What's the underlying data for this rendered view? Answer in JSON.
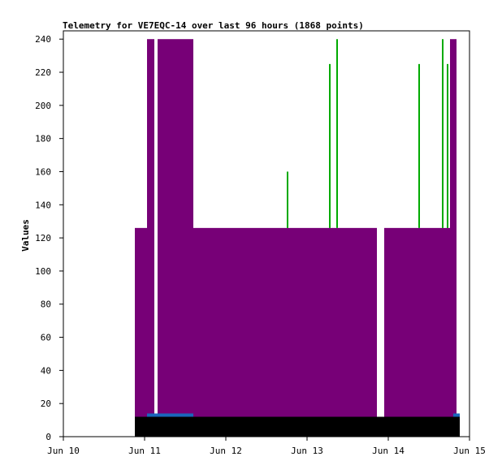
{
  "chart_data": {
    "type": "area",
    "title": "Telemetry for VE7EQC-14 over last 96 hours (1868 points)",
    "xlabel": "",
    "ylabel": "Values",
    "ylim": [
      0,
      245
    ],
    "xlim": [
      0,
      5
    ],
    "yticks": [
      0,
      20,
      40,
      60,
      80,
      100,
      120,
      140,
      160,
      180,
      200,
      220,
      240
    ],
    "xticks": [
      {
        "label": "Jun 10",
        "value": 0
      },
      {
        "label": "Jun 11",
        "value": 1
      },
      {
        "label": "Jun 12",
        "value": 2
      },
      {
        "label": "Jun 13",
        "value": 3
      },
      {
        "label": "Jun 14",
        "value": 4
      },
      {
        "label": "Jun 15",
        "value": 5
      }
    ],
    "grid": false,
    "colors": {
      "purple": "#770077",
      "black": "#000000",
      "blue": "#1a66bb",
      "green": "#00aa00"
    },
    "series": [
      {
        "color_key": "black",
        "bands": [
          {
            "x0": 0.88,
            "x1": 4.88,
            "y": 12
          }
        ]
      },
      {
        "color_key": "blue",
        "bands": [
          {
            "x0": 1.03,
            "x1": 1.6,
            "y": 14
          },
          {
            "x0": 4.8,
            "x1": 4.88,
            "y": 14
          }
        ]
      },
      {
        "color_key": "purple",
        "bands": [
          {
            "x0": 0.88,
            "x1": 1.03,
            "y": 126
          },
          {
            "x0": 1.6,
            "x1": 3.86,
            "y": 126
          },
          {
            "x0": 3.95,
            "x1": 4.82,
            "y": 126
          },
          {
            "x0": 1.03,
            "x1": 1.12,
            "y": 240
          },
          {
            "x0": 1.16,
            "x1": 1.6,
            "y": 240
          },
          {
            "x0": 4.76,
            "x1": 4.84,
            "y": 240
          }
        ]
      },
      {
        "color_key": "green",
        "spikes": [
          {
            "x": 2.76,
            "y": 160
          },
          {
            "x": 3.28,
            "y": 225
          },
          {
            "x": 3.37,
            "y": 240
          },
          {
            "x": 4.38,
            "y": 225
          },
          {
            "x": 4.67,
            "y": 240
          },
          {
            "x": 4.73,
            "y": 225
          }
        ]
      }
    ]
  }
}
